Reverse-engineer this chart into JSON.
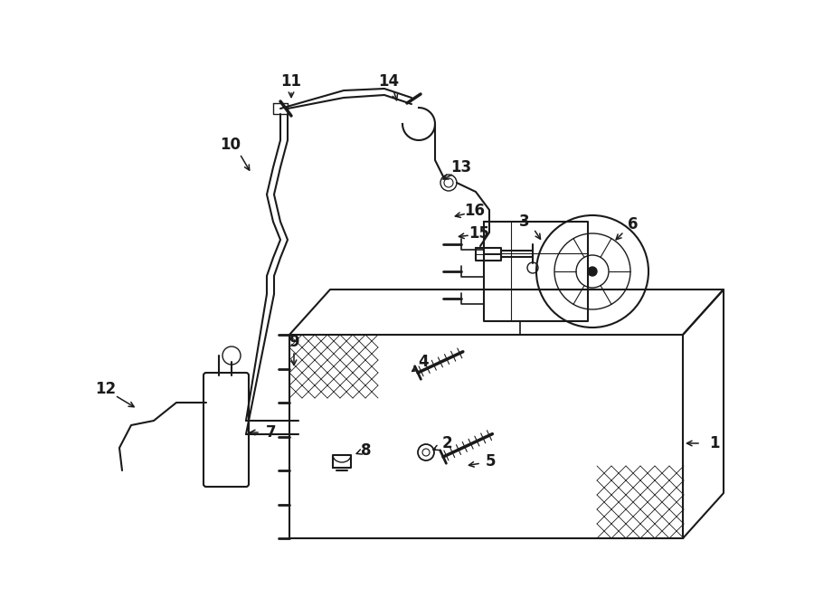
{
  "bg_color": "#ffffff",
  "lc": "#1a1a1a",
  "fig_w": 9.0,
  "fig_h": 6.61,
  "dpi": 100,
  "xlim": [
    0,
    900
  ],
  "ylim": [
    0,
    661
  ]
}
